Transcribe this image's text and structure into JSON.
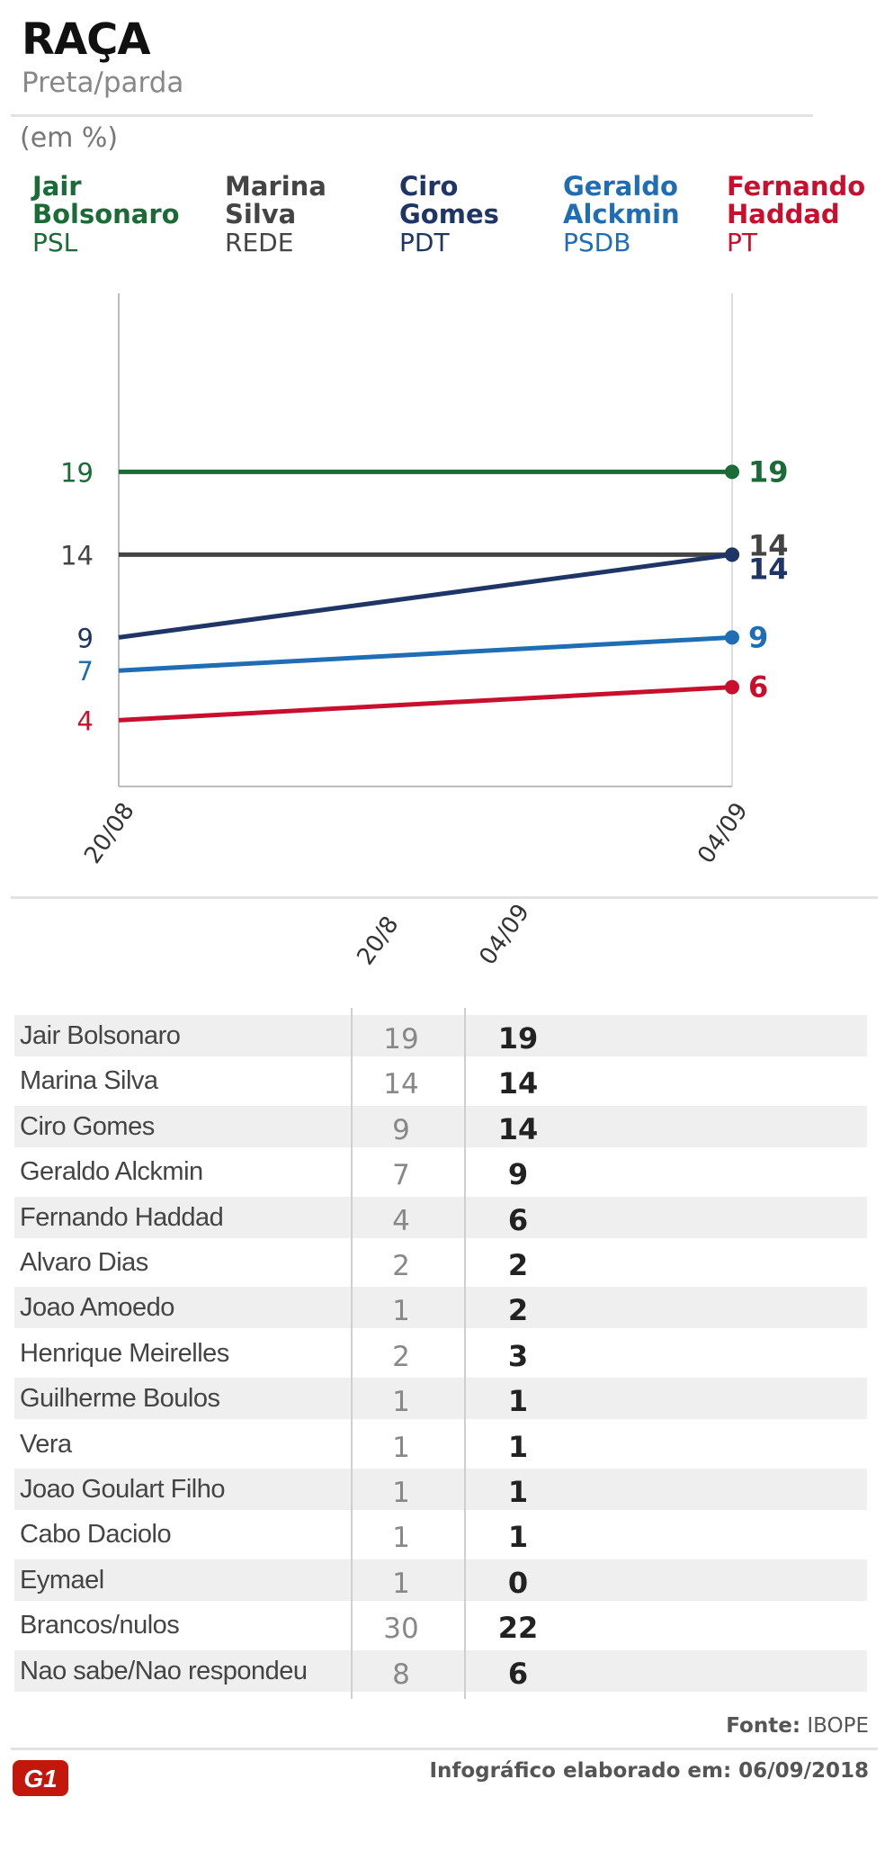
{
  "header": {
    "title": "RAÇA",
    "subtitle": "Preta/parda",
    "unit": "(em %)"
  },
  "legend": [
    {
      "name": "Jair\nBolsonaro",
      "party": "PSL",
      "color": "#1a6b36"
    },
    {
      "name": "Marina\nSilva",
      "party": "REDE",
      "color": "#444444"
    },
    {
      "name": "Ciro\nGomes",
      "party": "PDT",
      "color": "#1f3566"
    },
    {
      "name": "Geraldo\nAlckmin",
      "party": "PSDB",
      "color": "#1f6db5"
    },
    {
      "name": "Fernando\nHaddad",
      "party": "PT",
      "color": "#c8102e"
    }
  ],
  "chart_data": {
    "type": "line",
    "x": [
      "20/08",
      "04/09"
    ],
    "series": [
      {
        "name": "Jair Bolsonaro",
        "values": [
          19,
          19
        ],
        "color": "#1a6b36"
      },
      {
        "name": "Marina Silva",
        "values": [
          14,
          14
        ],
        "color": "#444444"
      },
      {
        "name": "Ciro Gomes",
        "values": [
          9,
          14
        ],
        "color": "#1f3566"
      },
      {
        "name": "Geraldo Alckmin",
        "values": [
          7,
          9
        ],
        "color": "#1f6db5"
      },
      {
        "name": "Fernando Haddad",
        "values": [
          4,
          6
        ],
        "color": "#c8102e"
      }
    ],
    "ylim": [
      0,
      29
    ],
    "grid": false
  },
  "table": {
    "columns": [
      "20/8",
      "04/09"
    ],
    "rows": [
      {
        "name": "Jair Bolsonaro",
        "v1": "19",
        "v2": "19"
      },
      {
        "name": "Marina Silva",
        "v1": "14",
        "v2": "14"
      },
      {
        "name": "Ciro Gomes",
        "v1": "9",
        "v2": "14"
      },
      {
        "name": "Geraldo Alckmin",
        "v1": "7",
        "v2": "9"
      },
      {
        "name": "Fernando Haddad",
        "v1": "4",
        "v2": "6"
      },
      {
        "name": "Alvaro Dias",
        "v1": "2",
        "v2": "2"
      },
      {
        "name": "Joao Amoedo",
        "v1": "1",
        "v2": "2"
      },
      {
        "name": "Henrique Meirelles",
        "v1": "2",
        "v2": "3"
      },
      {
        "name": "Guilherme Boulos",
        "v1": "1",
        "v2": "1"
      },
      {
        "name": "Vera",
        "v1": "1",
        "v2": "1"
      },
      {
        "name": "Joao Goulart Filho",
        "v1": "1",
        "v2": "1"
      },
      {
        "name": "Cabo Daciolo",
        "v1": "1",
        "v2": "1"
      },
      {
        "name": "Eymael",
        "v1": "1",
        "v2": "0"
      },
      {
        "name": "Brancos/nulos",
        "v1": "30",
        "v2": "22"
      },
      {
        "name": "Nao sabe/Nao respondeu",
        "v1": "8",
        "v2": "6"
      }
    ]
  },
  "footer": {
    "source_label": "Fonte:",
    "source_value": "IBOPE",
    "credit": "Infográfico elaborado em: 06/09/2018",
    "logo_text": "G1",
    "logo_color": "#c4170c"
  }
}
